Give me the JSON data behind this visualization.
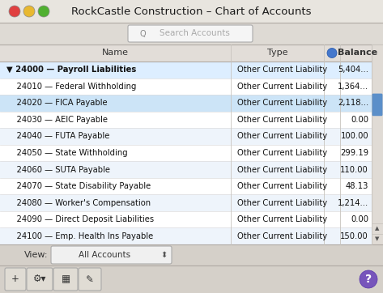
{
  "title": "RockCastle Construction – Chart of Accounts",
  "search_placeholder": "Search Accounts",
  "rows": [
    [
      "▼ 24000 — Payroll Liabilities",
      "Other Current Liability",
      "5,404..."
    ],
    [
      "    24010 — Federal Withholding",
      "Other Current Liability",
      "1,364..."
    ],
    [
      "    24020 — FICA Payable",
      "Other Current Liability",
      "2,118..."
    ],
    [
      "    24030 — AEIC Payable",
      "Other Current Liability",
      "0.00"
    ],
    [
      "    24040 — FUTA Payable",
      "Other Current Liability",
      "100.00"
    ],
    [
      "    24050 — State Withholding",
      "Other Current Liability",
      "299.19"
    ],
    [
      "    24060 — SUTA Payable",
      "Other Current Liability",
      "110.00"
    ],
    [
      "    24070 — State Disability Payable",
      "Other Current Liability",
      "48.13"
    ],
    [
      "    24080 — Worker's Compensation",
      "Other Current Liability",
      "1,214..."
    ],
    [
      "    24090 — Direct Deposit Liabilities",
      "Other Current Liability",
      "0.00"
    ],
    [
      "    24100 — Emp. Health Ins Payable",
      "Other Current Liability",
      "150.00"
    ]
  ],
  "highlighted_rows": [
    0,
    2
  ],
  "row0_color": "#ddeeff",
  "highlighted_color": "#cce4f7",
  "alt_row_color": "#eef4fb",
  "white_row_color": "#ffffff",
  "view_label": "View:",
  "view_value": "All Accounts",
  "bg_color": "#d5d0c9",
  "titlebar_grad_top": "#e8e5df",
  "titlebar_grad_bot": "#c8c5bf",
  "table_header_color": "#e2ddd8",
  "traffic_red": "#e04040",
  "traffic_yellow": "#e8b830",
  "traffic_green": "#50b030",
  "scrollbar_bg": "#e0dbd5",
  "scrollbar_thumb": "#5b8fc9",
  "separator_color": "#b0aaa4",
  "col_sep_color": "#c8c4be"
}
